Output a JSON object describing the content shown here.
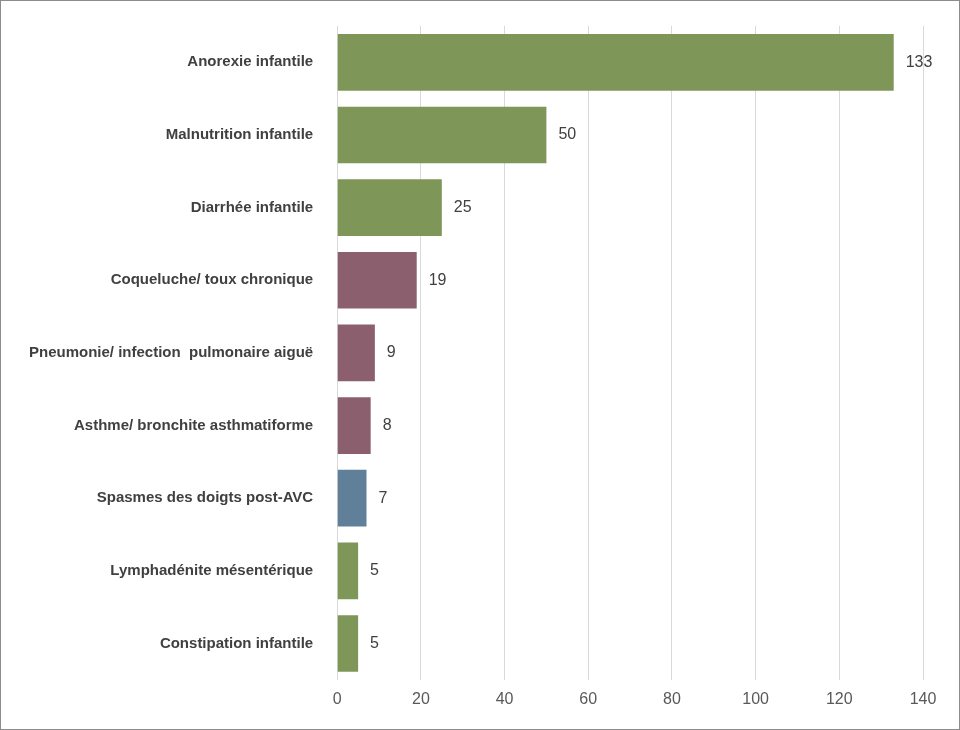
{
  "chart_data": {
    "type": "bar",
    "orientation": "horizontal",
    "categories": [
      "Anorexie infantile",
      "Malnutrition infantile",
      "Diarrhée infantile",
      "Coqueluche/ toux chronique",
      "Pneumonie/ infection  pulmonaire aiguë",
      "Asthme/ bronchite asthmatiforme",
      "Spasmes des doigts post-AVC",
      "Lymphadénite mésentérique",
      "Constipation infantile"
    ],
    "values": [
      133,
      50,
      25,
      19,
      9,
      8,
      7,
      5,
      5
    ],
    "colors": [
      "#7f9659",
      "#7f9659",
      "#7f9659",
      "#8c5f6e",
      "#8c5f6e",
      "#8c5f6e",
      "#5f8098",
      "#7f9659",
      "#7f9659"
    ],
    "xlim": [
      0,
      140
    ],
    "xticks": [
      0,
      20,
      40,
      60,
      80,
      100,
      120,
      140
    ],
    "grid": true,
    "data_labels": true
  }
}
